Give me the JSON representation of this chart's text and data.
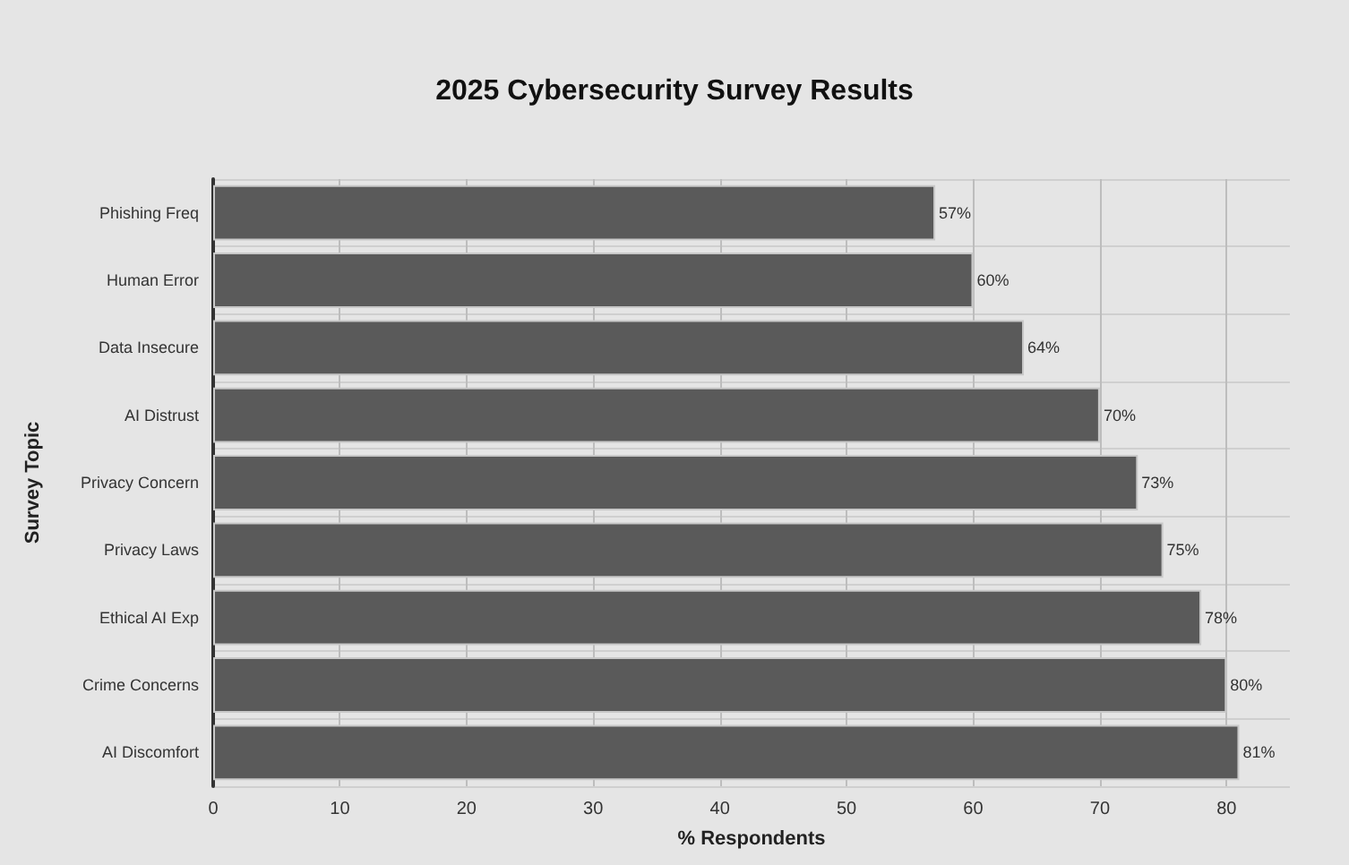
{
  "chart_data": {
    "type": "bar",
    "orientation": "horizontal",
    "title": "2025 Cybersecurity Survey Results",
    "xlabel": "% Respondents",
    "ylabel": "Survey Topic",
    "categories": [
      "Phishing Freq",
      "Human Error",
      "Data Insecure",
      "AI Distrust",
      "Privacy Concern",
      "Privacy Laws",
      "Ethical AI Exp",
      "Crime Concerns",
      "AI Discomfort"
    ],
    "values": [
      57,
      60,
      64,
      70,
      73,
      75,
      78,
      80,
      81
    ],
    "value_labels": [
      "57%",
      "60%",
      "64%",
      "70%",
      "73%",
      "75%",
      "78%",
      "80%",
      "81%"
    ],
    "color": "#5a5a5a",
    "xlim": [
      0,
      85
    ],
    "xticks": [
      0,
      10,
      20,
      30,
      40,
      50,
      60,
      70,
      80
    ],
    "grid": true
  }
}
